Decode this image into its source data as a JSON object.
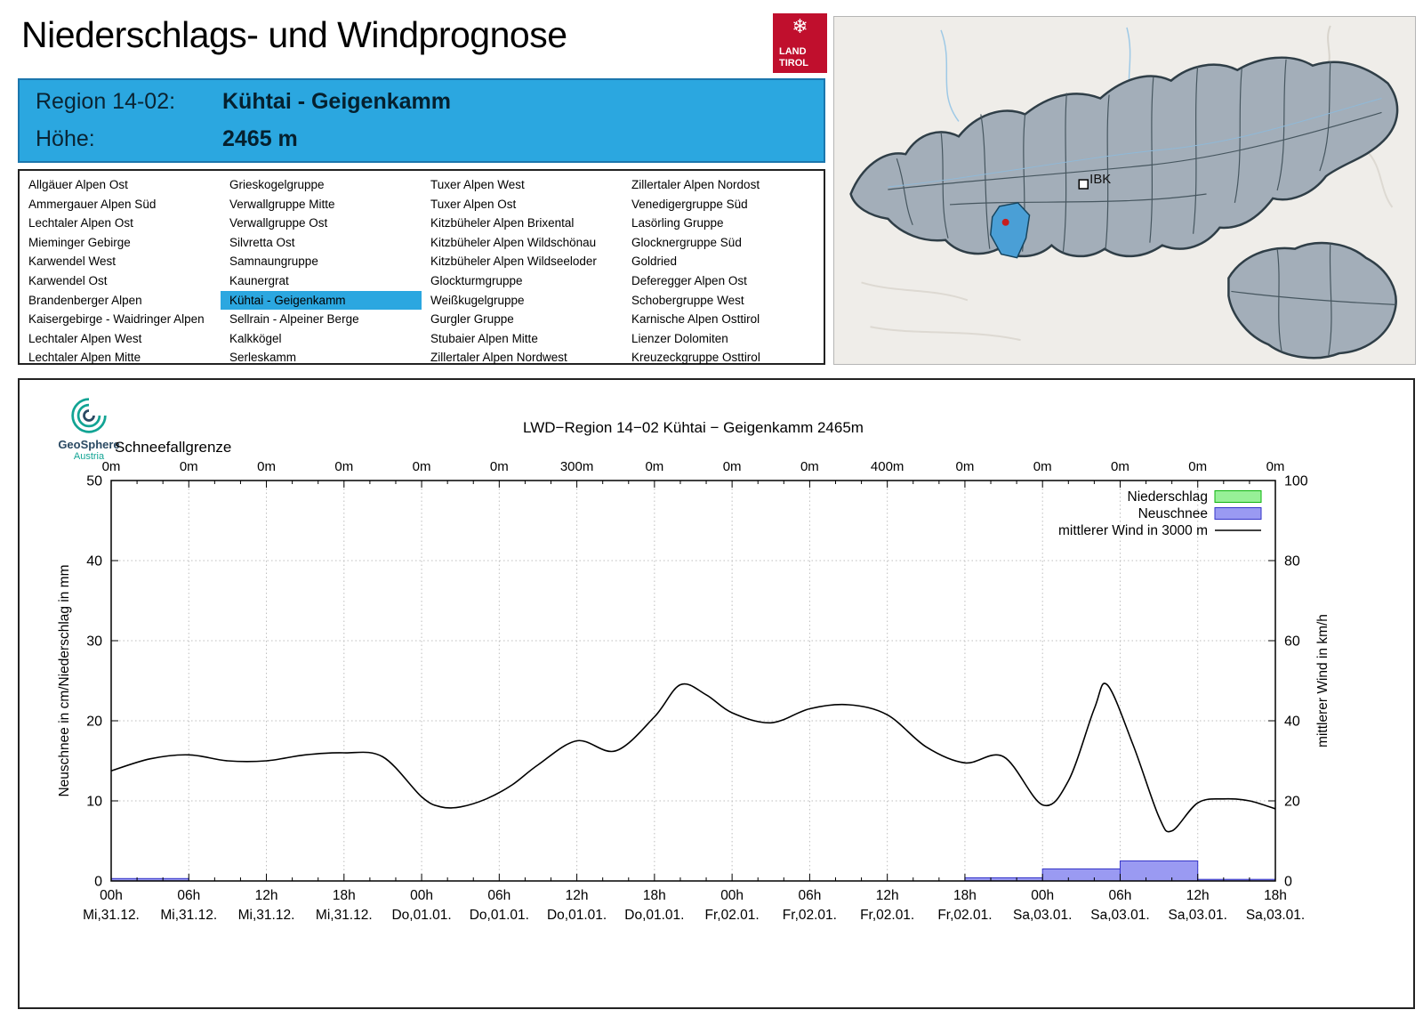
{
  "page_title": "Niederschlags- und Windprognose",
  "logo": {
    "line1": "LAND",
    "line2": "TIROL"
  },
  "region_header": {
    "region_label": "Region 14-02:",
    "region_name": "Kühtai - Geigenkamm",
    "altitude_label": "Höhe:",
    "altitude_value": "2465 m"
  },
  "region_list": {
    "selected": "Kühtai - Geigenkamm",
    "columns": [
      [
        "Allgäuer Alpen Ost",
        "Ammergauer Alpen Süd",
        "Lechtaler Alpen Ost",
        "Mieminger Gebirge",
        "Karwendel West",
        "Karwendel Ost",
        "Brandenberger Alpen",
        "Kaisergebirge - Waidringer Alpen",
        "Lechtaler Alpen West",
        "Lechtaler Alpen Mitte"
      ],
      [
        "Grieskogelgruppe",
        "Verwallgruppe Mitte",
        "Verwallgruppe Ost",
        "Silvretta Ost",
        "Samnaungruppe",
        "Kaunergrat",
        "Kühtai - Geigenkamm",
        "Sellrain - Alpeiner Berge",
        "Kalkkögel",
        "Serleskamm"
      ],
      [
        "Tuxer Alpen West",
        "Tuxer Alpen Ost",
        "Kitzbüheler Alpen Brixental",
        "Kitzbüheler Alpen Wildschönau",
        "Kitzbüheler Alpen Wildseeloder",
        "Glockturmgruppe",
        "Weißkugelgruppe",
        "Gurgler Gruppe",
        "Stubaier Alpen Mitte",
        "Zillertaler Alpen Nordwest"
      ],
      [
        "Zillertaler Alpen Nordost",
        "Venedigergruppe Süd",
        "Lasörling Gruppe",
        "Glocknergruppe Süd",
        "Goldried",
        "Deferegger Alpen Ost",
        "Schobergruppe West",
        "Karnische Alpen Osttirol",
        "Lienzer Dolomiten",
        "Kreuzeckgruppe Osttirol"
      ]
    ]
  },
  "map": {
    "city_label": "IBK"
  },
  "geosphere": {
    "name": "GeoSphere",
    "sub": "Austria"
  },
  "chart_data": {
    "type": "mixed",
    "title": "LWD−Region 14−02 Kühtai − Geigenkamm 2465m",
    "snowline": {
      "label": "Schneefallgrenze",
      "values": [
        "0m",
        "0m",
        "0m",
        "0m",
        "0m",
        "0m",
        "300m",
        "0m",
        "0m",
        "0m",
        "400m",
        "0m",
        "0m",
        "0m",
        "0m",
        "0m"
      ]
    },
    "axes": {
      "ylabel_left": "Neuschnee in cm/Niederschlag in mm",
      "ylabel_right": "mittlerer Wind in km/h",
      "ylim_left": [
        0,
        50
      ],
      "ylim_right": [
        0,
        100
      ],
      "yticks_left": [
        0,
        10,
        20,
        30,
        40,
        50
      ],
      "yticks_right": [
        0,
        20,
        40,
        60,
        80,
        100
      ],
      "x_hours_span": [
        0,
        90
      ],
      "x_ticks": [
        {
          "t": 0,
          "hour": "00h",
          "day": "Mi,31.12."
        },
        {
          "t": 6,
          "hour": "06h",
          "day": "Mi,31.12."
        },
        {
          "t": 12,
          "hour": "12h",
          "day": "Mi,31.12."
        },
        {
          "t": 18,
          "hour": "18h",
          "day": "Mi,31.12."
        },
        {
          "t": 24,
          "hour": "00h",
          "day": "Do,01.01."
        },
        {
          "t": 30,
          "hour": "06h",
          "day": "Do,01.01."
        },
        {
          "t": 36,
          "hour": "12h",
          "day": "Do,01.01."
        },
        {
          "t": 42,
          "hour": "18h",
          "day": "Do,01.01."
        },
        {
          "t": 48,
          "hour": "00h",
          "day": "Fr,02.01."
        },
        {
          "t": 54,
          "hour": "06h",
          "day": "Fr,02.01."
        },
        {
          "t": 60,
          "hour": "12h",
          "day": "Fr,02.01."
        },
        {
          "t": 66,
          "hour": "18h",
          "day": "Fr,02.01."
        },
        {
          "t": 72,
          "hour": "00h",
          "day": "Sa,03.01."
        },
        {
          "t": 78,
          "hour": "06h",
          "day": "Sa,03.01."
        },
        {
          "t": 84,
          "hour": "12h",
          "day": "Sa,03.01."
        },
        {
          "t": 90,
          "hour": "18h",
          "day": "Sa,03.01."
        }
      ]
    },
    "legend": [
      {
        "label": "Niederschlag",
        "type": "box",
        "fill": "#97f097",
        "stroke": "#0eb40e"
      },
      {
        "label": "Neuschnee",
        "type": "box",
        "fill": "#9a9af2",
        "stroke": "#3535c8"
      },
      {
        "label": "mittlerer Wind in 3000 m",
        "type": "line",
        "stroke": "#000000"
      }
    ],
    "series": {
      "niederschlag_mm": [],
      "neuschnee_cm": [
        {
          "t_from": 0,
          "t_to": 6,
          "value": 0.3
        },
        {
          "t_from": 66,
          "t_to": 72,
          "value": 0.4
        },
        {
          "t_from": 72,
          "t_to": 78,
          "value": 1.5
        },
        {
          "t_from": 78,
          "t_to": 84,
          "value": 2.5
        },
        {
          "t_from": 84,
          "t_to": 90,
          "value": 0.2
        }
      ],
      "wind_kmh": {
        "t": [
          0,
          3,
          6,
          9,
          12,
          15,
          18,
          21,
          24,
          25.5,
          27,
          29,
          31,
          33,
          36,
          39,
          42,
          44,
          46,
          48,
          51,
          54,
          57,
          60,
          63,
          66,
          69,
          72,
          74,
          76,
          77,
          79,
          81,
          82,
          84,
          86,
          88,
          90
        ],
        "v": [
          27.5,
          30.5,
          31.5,
          30,
          30,
          31.5,
          32,
          31,
          21,
          18.5,
          18.5,
          20.5,
          24,
          29,
          35,
          32.5,
          41,
          49,
          46.5,
          42,
          39.5,
          43,
          44,
          41.5,
          33.5,
          29.5,
          31,
          19,
          25,
          43,
          49,
          34,
          16,
          12.5,
          19.5,
          20.5,
          20,
          18
        ]
      }
    }
  }
}
